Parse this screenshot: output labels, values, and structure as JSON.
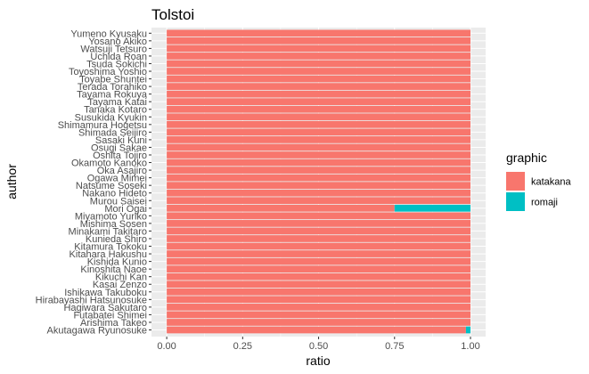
{
  "chart_data": {
    "type": "bar",
    "orientation": "horizontal",
    "stacked": true,
    "title": "Tolstoi",
    "xlabel": "ratio",
    "ylabel": "author",
    "xlim": [
      0,
      1
    ],
    "x_ticks": [
      "0.00",
      "0.25",
      "0.50",
      "0.75",
      "1.00"
    ],
    "grid": true,
    "legend": {
      "title": "graphic",
      "position": "right"
    },
    "categories": [
      "Akutagawa Ryunosuke",
      "Arishima Takeo",
      "Futabatei Shimei",
      "Hagiwara Sakutaro",
      "Hirabayashi Hatsunosuke",
      "Ishikawa Takuboku",
      "Kasai Zenzo",
      "Kikuchi Kan",
      "Kinoshita Naoe",
      "Kishida Kunio",
      "Kitahara Hakushu",
      "Kitamura Tokoku",
      "Kunieda Shiro",
      "Minakami Takitaro",
      "Mishima Sosen",
      "Miyamoto Yuriko",
      "Mori Ogai",
      "Murou Saisei",
      "Nakano Hideto",
      "Natsume Soseki",
      "Ogawa Mimei",
      "Oka Asajiro",
      "Okamoto Kanoko",
      "Oshita Tojiro",
      "Osugi Sakae",
      "Sasaki Kuni",
      "Shimada Seijiro",
      "Shimamura Hogetsu",
      "Susukida Kyukin",
      "Tanaka Kotaro",
      "Tayama Katai",
      "Tayama Rokuya",
      "Terada Torahiko",
      "Toyabe Shuntei",
      "Toyoshima Yoshio",
      "Tsuda Sokichi",
      "Uchida Roan",
      "Watsuji Tetsuro",
      "Yosano Akiko",
      "Yumeno Kyusaku"
    ],
    "series": [
      {
        "name": "katakana",
        "color": "#F8766D",
        "values": [
          0.985,
          1,
          1,
          1,
          1,
          1,
          1,
          1,
          1,
          1,
          1,
          1,
          1,
          1,
          1,
          1,
          0.75,
          1,
          1,
          1,
          1,
          1,
          1,
          1,
          1,
          1,
          1,
          1,
          1,
          1,
          1,
          1,
          1,
          1,
          1,
          1,
          1,
          1,
          1,
          1
        ]
      },
      {
        "name": "romaji",
        "color": "#00BFC4",
        "values": [
          0.015,
          0,
          0,
          0,
          0,
          0,
          0,
          0,
          0,
          0,
          0,
          0,
          0,
          0,
          0,
          0,
          0.25,
          0,
          0,
          0,
          0,
          0,
          0,
          0,
          0,
          0,
          0,
          0,
          0,
          0,
          0,
          0,
          0,
          0,
          0,
          0,
          0,
          0,
          0,
          0
        ]
      }
    ]
  }
}
